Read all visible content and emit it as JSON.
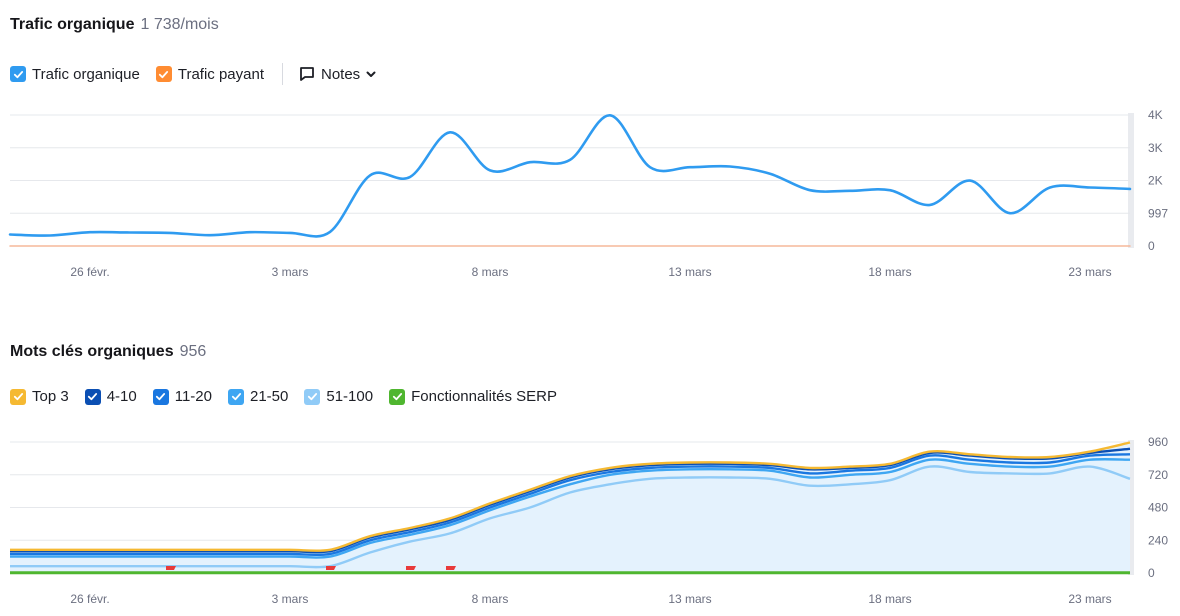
{
  "traffic": {
    "title": "Trafic organique",
    "value": "1 738/mois",
    "legend": [
      {
        "label": "Trafic organique",
        "color": "#2f9bf0",
        "icon": "checkbox-checked-icon"
      },
      {
        "label": "Trafic payant",
        "color": "#ff8c32",
        "icon": "checkbox-checked-icon"
      }
    ],
    "notes_label": "Notes"
  },
  "keywords": {
    "title": "Mots clés organiques",
    "value": "956",
    "legend": [
      {
        "label": "Top 3",
        "color": "#f5b932",
        "icon": "checkbox-checked-icon"
      },
      {
        "label": "4-10",
        "color": "#0b4fb3",
        "icon": "checkbox-checked-icon"
      },
      {
        "label": "11-20",
        "color": "#1a77e0",
        "icon": "checkbox-checked-icon"
      },
      {
        "label": "21-50",
        "color": "#3ea6f2",
        "icon": "checkbox-checked-icon"
      },
      {
        "label": "51-100",
        "color": "#90cbf7",
        "icon": "checkbox-checked-icon"
      },
      {
        "label": "Fonctionnalités SERP",
        "color": "#4fb62f",
        "icon": "checkbox-checked-icon"
      }
    ]
  },
  "chart_data": [
    {
      "type": "line",
      "x": [
        "24 févr.",
        "25 févr.",
        "26 févr.",
        "27 févr.",
        "28 févr.",
        "1 mars",
        "2 mars",
        "3 mars",
        "4 mars",
        "5 mars",
        "6 mars",
        "7 mars",
        "8 mars",
        "9 mars",
        "10 mars",
        "11 mars",
        "12 mars",
        "13 mars",
        "14 mars",
        "15 mars",
        "16 mars",
        "17 mars",
        "18 mars",
        "19 mars",
        "20 mars",
        "21 mars",
        "22 mars",
        "23 mars",
        "24 mars"
      ],
      "xticks": [
        "26 févr.",
        "3 mars",
        "8 mars",
        "13 mars",
        "18 mars",
        "23 mars"
      ],
      "yticks": [
        "4K",
        "3K",
        "2K",
        "997",
        "0"
      ],
      "ytick_values": [
        3988,
        2991,
        1994,
        997,
        0
      ],
      "ylim": [
        0,
        3988
      ],
      "grid": true,
      "series": [
        {
          "name": "Trafic organique",
          "color": "#2f9bf0",
          "values": [
            350,
            320,
            420,
            410,
            400,
            330,
            420,
            400,
            430,
            2150,
            2100,
            3460,
            2300,
            2550,
            2620,
            3980,
            2400,
            2400,
            2420,
            2200,
            1700,
            1680,
            1700,
            1250,
            1990,
            1000,
            1780,
            1780,
            1738
          ]
        },
        {
          "name": "Trafic payant",
          "color": "#f6b89a",
          "values": [
            0,
            0,
            0,
            0,
            0,
            0,
            0,
            0,
            0,
            0,
            0,
            0,
            0,
            0,
            0,
            0,
            0,
            0,
            0,
            0,
            0,
            0,
            0,
            0,
            0,
            0,
            0,
            0,
            0
          ]
        }
      ]
    },
    {
      "type": "area",
      "x": [
        "24 févr.",
        "25 févr.",
        "26 févr.",
        "27 févr.",
        "28 févr.",
        "1 mars",
        "2 mars",
        "3 mars",
        "4 mars",
        "5 mars",
        "6 mars",
        "7 mars",
        "8 mars",
        "9 mars",
        "10 mars",
        "11 mars",
        "12 mars",
        "13 mars",
        "14 mars",
        "15 mars",
        "16 mars",
        "17 mars",
        "18 mars",
        "19 mars",
        "20 mars",
        "21 mars",
        "22 mars",
        "23 mars",
        "24 mars"
      ],
      "xticks": [
        "26 févr.",
        "3 mars",
        "8 mars",
        "13 mars",
        "18 mars",
        "23 mars"
      ],
      "yticks": [
        "960",
        "720",
        "480",
        "240",
        "0"
      ],
      "ytick_values": [
        960,
        720,
        480,
        240,
        0
      ],
      "ylim": [
        0,
        960
      ],
      "grid": true,
      "stacked_totals": [
        {
          "name": "51-100",
          "color": "#90cbf7",
          "values": [
            50,
            50,
            50,
            50,
            50,
            50,
            50,
            50,
            50,
            150,
            230,
            290,
            400,
            480,
            590,
            650,
            690,
            700,
            700,
            690,
            640,
            650,
            680,
            780,
            740,
            730,
            730,
            780,
            690
          ]
        },
        {
          "name": "21-50",
          "color": "#3ea6f2",
          "values": [
            120,
            120,
            120,
            120,
            120,
            120,
            120,
            120,
            120,
            220,
            280,
            350,
            460,
            560,
            650,
            720,
            750,
            760,
            760,
            750,
            700,
            720,
            740,
            830,
            800,
            780,
            780,
            830,
            830
          ]
        },
        {
          "name": "11-20",
          "color": "#1a77e0",
          "values": [
            140,
            140,
            140,
            140,
            140,
            140,
            140,
            140,
            140,
            240,
            300,
            370,
            480,
            580,
            680,
            740,
            770,
            780,
            780,
            770,
            730,
            750,
            770,
            860,
            830,
            810,
            810,
            860,
            870
          ]
        },
        {
          "name": "4-10",
          "color": "#0b4fb3",
          "values": [
            160,
            160,
            160,
            160,
            160,
            160,
            160,
            160,
            160,
            260,
            320,
            390,
            500,
            600,
            700,
            760,
            790,
            800,
            800,
            790,
            760,
            770,
            790,
            880,
            860,
            840,
            840,
            880,
            910
          ]
        },
        {
          "name": "Top 3",
          "color": "#f5b932",
          "values": [
            170,
            170,
            170,
            170,
            170,
            170,
            170,
            170,
            170,
            270,
            330,
            400,
            510,
            610,
            710,
            770,
            800,
            810,
            810,
            800,
            770,
            780,
            800,
            890,
            870,
            850,
            850,
            890,
            956
          ]
        },
        {
          "name": "Fonctionnalités SERP",
          "color": "#4fb62f",
          "values": [
            2,
            2,
            2,
            2,
            2,
            2,
            2,
            2,
            2,
            2,
            2,
            2,
            2,
            2,
            2,
            2,
            2,
            2,
            2,
            2,
            2,
            2,
            2,
            2,
            2,
            2,
            2,
            2,
            2
          ]
        }
      ],
      "annotations": [
        {
          "type": "flag",
          "x": "28 févr.",
          "color": "#e83a3a"
        },
        {
          "type": "flag",
          "x": "4 mars",
          "color": "#e83a3a"
        },
        {
          "type": "flag",
          "x": "6 mars",
          "color": "#e83a3a"
        },
        {
          "type": "flag",
          "x": "7 mars",
          "color": "#e83a3a"
        }
      ]
    }
  ]
}
